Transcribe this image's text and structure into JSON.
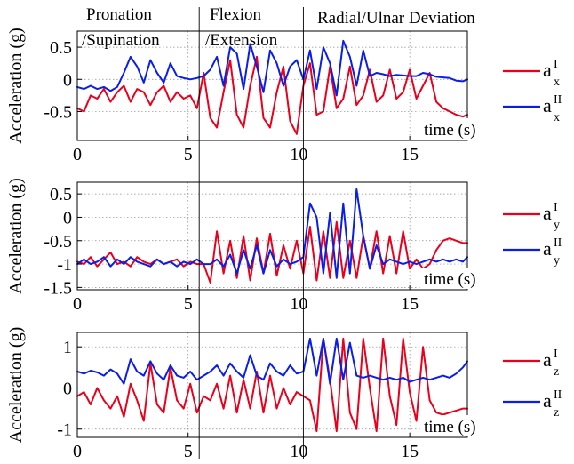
{
  "colors": {
    "red": "#e8001c",
    "blue": "#0a1ee6"
  },
  "phases": [
    {
      "label_line1": "Pronation",
      "label_line2": "/Supination",
      "start": 0,
      "end": 5.5
    },
    {
      "label_line1": "Flexion",
      "label_line2": "/Extension",
      "start": 5.5,
      "end": 10.2
    },
    {
      "label_line1": "Radial/Ulnar Deviation",
      "label_line2": "",
      "start": 10.2,
      "end": 17.6
    }
  ],
  "chart_data": [
    {
      "type": "line",
      "ylabel": "Acceleration (g)",
      "xlabel": "time (s)",
      "xlim": [
        0,
        17.6
      ],
      "ylim": [
        -0.95,
        0.75
      ],
      "xticks": [
        "0",
        "5",
        "10",
        "15"
      ],
      "xtick_values": [
        0,
        5,
        10,
        15
      ],
      "yticks": [
        "0.5",
        "0",
        "-0.5"
      ],
      "ytick_values": [
        0.5,
        0,
        -0.5
      ],
      "grid": true,
      "legend": [
        {
          "base": "a",
          "sup": "I",
          "sub": "x",
          "color": "#e8001c"
        },
        {
          "base": "a",
          "sup": "II",
          "sub": "x",
          "color": "#0a1ee6"
        }
      ],
      "series": [
        {
          "color": "#e8001c",
          "x": [
            0,
            0.3,
            0.6,
            0.9,
            1.2,
            1.5,
            1.8,
            2.1,
            2.4,
            2.7,
            3.0,
            3.3,
            3.6,
            3.9,
            4.2,
            4.5,
            4.8,
            5.1,
            5.4,
            5.7,
            6.0,
            6.3,
            6.6,
            6.9,
            7.2,
            7.5,
            7.8,
            8.1,
            8.4,
            8.7,
            9.0,
            9.3,
            9.6,
            9.9,
            10.2,
            10.5,
            10.8,
            11.1,
            11.4,
            11.7,
            12.0,
            12.3,
            12.6,
            12.9,
            13.2,
            13.5,
            13.8,
            14.1,
            14.4,
            14.7,
            15.0,
            15.3,
            15.6,
            15.9,
            16.2,
            16.5,
            16.8,
            17.1,
            17.4,
            17.6
          ],
          "y": [
            -0.45,
            -0.5,
            -0.25,
            -0.3,
            -0.15,
            -0.35,
            -0.2,
            -0.1,
            -0.35,
            -0.15,
            -0.2,
            -0.4,
            -0.2,
            -0.1,
            -0.35,
            -0.2,
            -0.3,
            -0.25,
            -0.45,
            0.1,
            -0.6,
            -0.75,
            -0.2,
            0.3,
            -0.55,
            -0.75,
            -0.1,
            0.35,
            -0.6,
            -0.75,
            -0.2,
            0.2,
            -0.65,
            -0.85,
            -0.1,
            0.25,
            -0.55,
            -0.5,
            0.2,
            -0.45,
            -0.3,
            0.2,
            -0.4,
            -0.25,
            0.15,
            -0.35,
            -0.25,
            0.15,
            -0.3,
            -0.2,
            0.15,
            -0.3,
            -0.1,
            0.1,
            -0.35,
            -0.45,
            -0.5,
            -0.55,
            -0.58,
            -0.55
          ]
        },
        {
          "color": "#0a1ee6",
          "x": [
            0,
            0.3,
            0.6,
            0.9,
            1.2,
            1.5,
            1.8,
            2.1,
            2.4,
            2.7,
            3.0,
            3.3,
            3.6,
            3.9,
            4.2,
            4.5,
            4.8,
            5.1,
            5.4,
            5.7,
            6.0,
            6.3,
            6.6,
            6.9,
            7.2,
            7.5,
            7.8,
            8.1,
            8.4,
            8.7,
            9.0,
            9.3,
            9.6,
            9.9,
            10.2,
            10.5,
            10.8,
            11.1,
            11.4,
            11.7,
            12.0,
            12.3,
            12.6,
            12.9,
            13.2,
            13.5,
            13.8,
            14.1,
            14.4,
            14.7,
            15.0,
            15.3,
            15.6,
            15.9,
            16.2,
            16.5,
            16.8,
            17.1,
            17.4,
            17.6
          ],
          "y": [
            -0.12,
            -0.15,
            -0.1,
            -0.15,
            -0.12,
            -0.18,
            -0.12,
            0.1,
            0.35,
            0.2,
            -0.05,
            0.3,
            0.1,
            -0.05,
            0.25,
            0.05,
            0.02,
            0.0,
            0.02,
            0.05,
            0.15,
            0.35,
            -0.1,
            0.5,
            0.4,
            -0.15,
            0.55,
            0.2,
            -0.2,
            0.45,
            0.25,
            -0.1,
            0.2,
            0.3,
            0.0,
            0.45,
            -0.15,
            0.5,
            0.25,
            -0.25,
            0.6,
            0.35,
            -0.1,
            0.45,
            0.05,
            0.1,
            0.08,
            0.05,
            0.07,
            0.06,
            0.05,
            0.05,
            0.1,
            0.08,
            0.04,
            0.03,
            0.02,
            -0.02,
            -0.03,
            0.0
          ]
        }
      ]
    },
    {
      "type": "line",
      "ylabel": "Acceleration (g)",
      "xlabel": "time (s)",
      "xlim": [
        0,
        17.6
      ],
      "ylim": [
        -1.55,
        0.75
      ],
      "xticks": [
        "0",
        "5",
        "10",
        "15"
      ],
      "xtick_values": [
        0,
        5,
        10,
        15
      ],
      "yticks": [
        "0.5",
        "0",
        "-0.5",
        "-1",
        "-1.5"
      ],
      "ytick_values": [
        0.5,
        0,
        -0.5,
        -1,
        -1.5
      ],
      "grid": true,
      "legend": [
        {
          "base": "a",
          "sup": "I",
          "sub": "y",
          "color": "#e8001c"
        },
        {
          "base": "a",
          "sup": "II",
          "sub": "y",
          "color": "#0a1ee6"
        }
      ],
      "series": [
        {
          "color": "#e8001c",
          "x": [
            0,
            0.3,
            0.6,
            0.9,
            1.2,
            1.5,
            1.8,
            2.1,
            2.4,
            2.7,
            3.0,
            3.3,
            3.6,
            3.9,
            4.2,
            4.5,
            4.8,
            5.1,
            5.4,
            5.7,
            6.0,
            6.3,
            6.6,
            6.9,
            7.2,
            7.5,
            7.8,
            8.1,
            8.4,
            8.7,
            9.0,
            9.3,
            9.6,
            9.9,
            10.2,
            10.5,
            10.8,
            11.1,
            11.4,
            11.7,
            12.0,
            12.3,
            12.6,
            12.9,
            13.2,
            13.5,
            13.8,
            14.1,
            14.4,
            14.7,
            15.0,
            15.3,
            15.6,
            15.9,
            16.2,
            16.5,
            16.8,
            17.1,
            17.4,
            17.6
          ],
          "y": [
            -0.95,
            -1.0,
            -0.85,
            -1.05,
            -0.9,
            -0.75,
            -1.0,
            -0.95,
            -1.05,
            -0.85,
            -0.95,
            -1.0,
            -0.9,
            -1.0,
            -0.95,
            -0.9,
            -1.05,
            -0.95,
            -1.0,
            -1.0,
            -1.4,
            -0.3,
            -1.2,
            -0.5,
            -1.3,
            -0.4,
            -1.35,
            -0.45,
            -1.2,
            -0.35,
            -1.25,
            -0.6,
            -1.1,
            -0.5,
            -1.2,
            -0.2,
            -1.35,
            -0.3,
            -1.3,
            -0.1,
            -1.3,
            -0.5,
            -1.3,
            -0.4,
            -1.1,
            -0.3,
            -1.2,
            -0.4,
            -1.2,
            -0.3,
            -1.1,
            -0.9,
            -1.1,
            -1.0,
            -0.7,
            -0.5,
            -0.45,
            -0.5,
            -0.55,
            -0.55
          ]
        },
        {
          "color": "#0a1ee6",
          "x": [
            0,
            0.3,
            0.6,
            0.9,
            1.2,
            1.5,
            1.8,
            2.1,
            2.4,
            2.7,
            3.0,
            3.3,
            3.6,
            3.9,
            4.2,
            4.5,
            4.8,
            5.1,
            5.4,
            5.7,
            6.0,
            6.3,
            6.6,
            6.9,
            7.2,
            7.5,
            7.8,
            8.1,
            8.4,
            8.7,
            9.0,
            9.3,
            9.6,
            9.9,
            10.2,
            10.5,
            10.8,
            11.1,
            11.4,
            11.7,
            12.0,
            12.3,
            12.6,
            12.9,
            13.2,
            13.5,
            13.8,
            14.1,
            14.4,
            14.7,
            15.0,
            15.3,
            15.6,
            15.9,
            16.2,
            16.5,
            16.8,
            17.1,
            17.4,
            17.6
          ],
          "y": [
            -1.0,
            -0.9,
            -1.0,
            -0.95,
            -0.85,
            -1.05,
            -0.9,
            -1.0,
            -0.85,
            -0.95,
            -1.0,
            -1.05,
            -0.9,
            -1.0,
            -0.95,
            -1.05,
            -0.95,
            -1.0,
            -0.9,
            -1.0,
            -1.0,
            -0.9,
            -1.05,
            -0.8,
            -1.2,
            -0.7,
            -1.1,
            -0.6,
            -1.2,
            -0.7,
            -1.05,
            -0.9,
            -1.0,
            -0.95,
            -0.85,
            0.3,
            0.0,
            -1.2,
            0.1,
            -1.3,
            0.3,
            -1.2,
            0.6,
            -0.4,
            -1.1,
            -0.6,
            -1.0,
            -0.9,
            -0.95,
            -1.0,
            -0.95,
            -1.0,
            -0.95,
            -0.9,
            -0.95,
            -0.9,
            -0.95,
            -0.9,
            -0.95,
            -0.85
          ]
        }
      ]
    },
    {
      "type": "line",
      "ylabel": "Acceleration (g)",
      "xlabel": "time (s)",
      "xlim": [
        0,
        17.6
      ],
      "ylim": [
        -1.2,
        1.35
      ],
      "xticks": [
        "0",
        "5",
        "10",
        "15"
      ],
      "xtick_values": [
        0,
        5,
        10,
        15
      ],
      "yticks": [
        "1",
        "0",
        "-1"
      ],
      "ytick_values": [
        1,
        0,
        -1
      ],
      "grid": true,
      "legend": [
        {
          "base": "a",
          "sup": "I",
          "sub": "z",
          "color": "#e8001c"
        },
        {
          "base": "a",
          "sup": "II",
          "sub": "z",
          "color": "#0a1ee6"
        }
      ],
      "series": [
        {
          "color": "#e8001c",
          "x": [
            0,
            0.3,
            0.6,
            0.9,
            1.2,
            1.5,
            1.8,
            2.1,
            2.4,
            2.7,
            3.0,
            3.3,
            3.6,
            3.9,
            4.2,
            4.5,
            4.8,
            5.1,
            5.4,
            5.7,
            6.0,
            6.3,
            6.6,
            6.9,
            7.2,
            7.5,
            7.8,
            8.1,
            8.4,
            8.7,
            9.0,
            9.3,
            9.6,
            9.9,
            10.2,
            10.5,
            10.8,
            11.1,
            11.4,
            11.7,
            12.0,
            12.3,
            12.6,
            12.9,
            13.2,
            13.5,
            13.8,
            14.1,
            14.4,
            14.7,
            15.0,
            15.3,
            15.6,
            15.9,
            16.2,
            16.5,
            16.8,
            17.1,
            17.4,
            17.6
          ],
          "y": [
            -0.2,
            -0.1,
            -0.4,
            0.0,
            -0.3,
            -0.5,
            -0.2,
            -0.7,
            0.1,
            -0.3,
            -0.8,
            0.6,
            -0.4,
            -0.6,
            0.5,
            -0.3,
            -0.5,
            0.1,
            -0.6,
            -0.2,
            -0.3,
            0.1,
            -0.5,
            0.3,
            -0.6,
            0.2,
            -0.5,
            0.4,
            -0.6,
            0.3,
            -0.5,
            0.0,
            -0.4,
            -0.1,
            -0.2,
            -0.3,
            -1.05,
            1.2,
            0.2,
            -1.05,
            1.2,
            -0.6,
            -1.0,
            1.2,
            0.0,
            -1.05,
            1.2,
            -0.2,
            -0.9,
            1.2,
            -0.1,
            -0.8,
            1.0,
            -0.3,
            -0.6,
            -0.65,
            -0.6,
            -0.55,
            -0.5,
            -0.5
          ]
        },
        {
          "color": "#0a1ee6",
          "x": [
            0,
            0.3,
            0.6,
            0.9,
            1.2,
            1.5,
            1.8,
            2.1,
            2.4,
            2.7,
            3.0,
            3.3,
            3.6,
            3.9,
            4.2,
            4.5,
            4.8,
            5.1,
            5.4,
            5.7,
            6.0,
            6.3,
            6.6,
            6.9,
            7.2,
            7.5,
            7.8,
            8.1,
            8.4,
            8.7,
            9.0,
            9.3,
            9.6,
            9.9,
            10.2,
            10.5,
            10.8,
            11.1,
            11.4,
            11.7,
            12.0,
            12.3,
            12.6,
            12.9,
            13.2,
            13.5,
            13.8,
            14.1,
            14.4,
            14.7,
            15.0,
            15.3,
            15.6,
            15.9,
            16.2,
            16.5,
            16.8,
            17.1,
            17.4,
            17.6
          ],
          "y": [
            0.4,
            0.35,
            0.42,
            0.38,
            0.3,
            0.45,
            0.35,
            0.1,
            0.7,
            0.4,
            0.3,
            0.65,
            0.35,
            0.2,
            0.55,
            0.3,
            0.25,
            0.4,
            0.2,
            0.3,
            0.4,
            0.55,
            0.3,
            0.6,
            0.4,
            0.25,
            0.8,
            0.3,
            0.2,
            0.6,
            0.4,
            0.3,
            0.55,
            0.35,
            0.4,
            1.2,
            0.3,
            1.2,
            0.1,
            1.2,
            0.2,
            1.1,
            0.3,
            0.25,
            0.3,
            0.25,
            0.2,
            0.25,
            0.2,
            0.25,
            0.15,
            0.2,
            0.25,
            0.2,
            0.25,
            0.3,
            0.25,
            0.35,
            0.5,
            0.65
          ]
        }
      ]
    }
  ]
}
